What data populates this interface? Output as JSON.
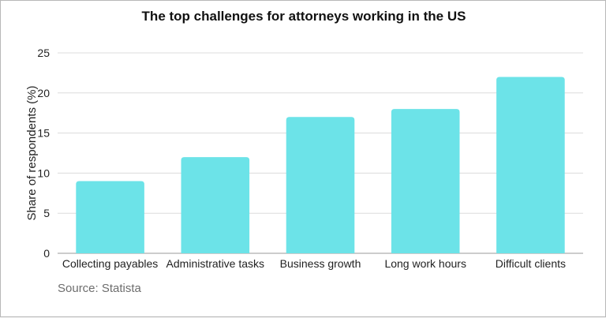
{
  "chart_data": {
    "type": "bar",
    "title": "The top challenges for attorneys working in the US",
    "xlabel": "",
    "ylabel": "Share of respondents (%)",
    "categories": [
      "Collecting payables",
      "Administrative tasks",
      "Business growth",
      "Long work hours",
      "Difficult clients"
    ],
    "values": [
      9,
      12,
      17,
      18,
      22
    ],
    "ylim": [
      0,
      25
    ],
    "yticks": [
      0,
      5,
      10,
      15,
      20,
      25
    ],
    "grid": true,
    "bar_color": "#6ce3e8"
  },
  "source": "Source: Statista"
}
